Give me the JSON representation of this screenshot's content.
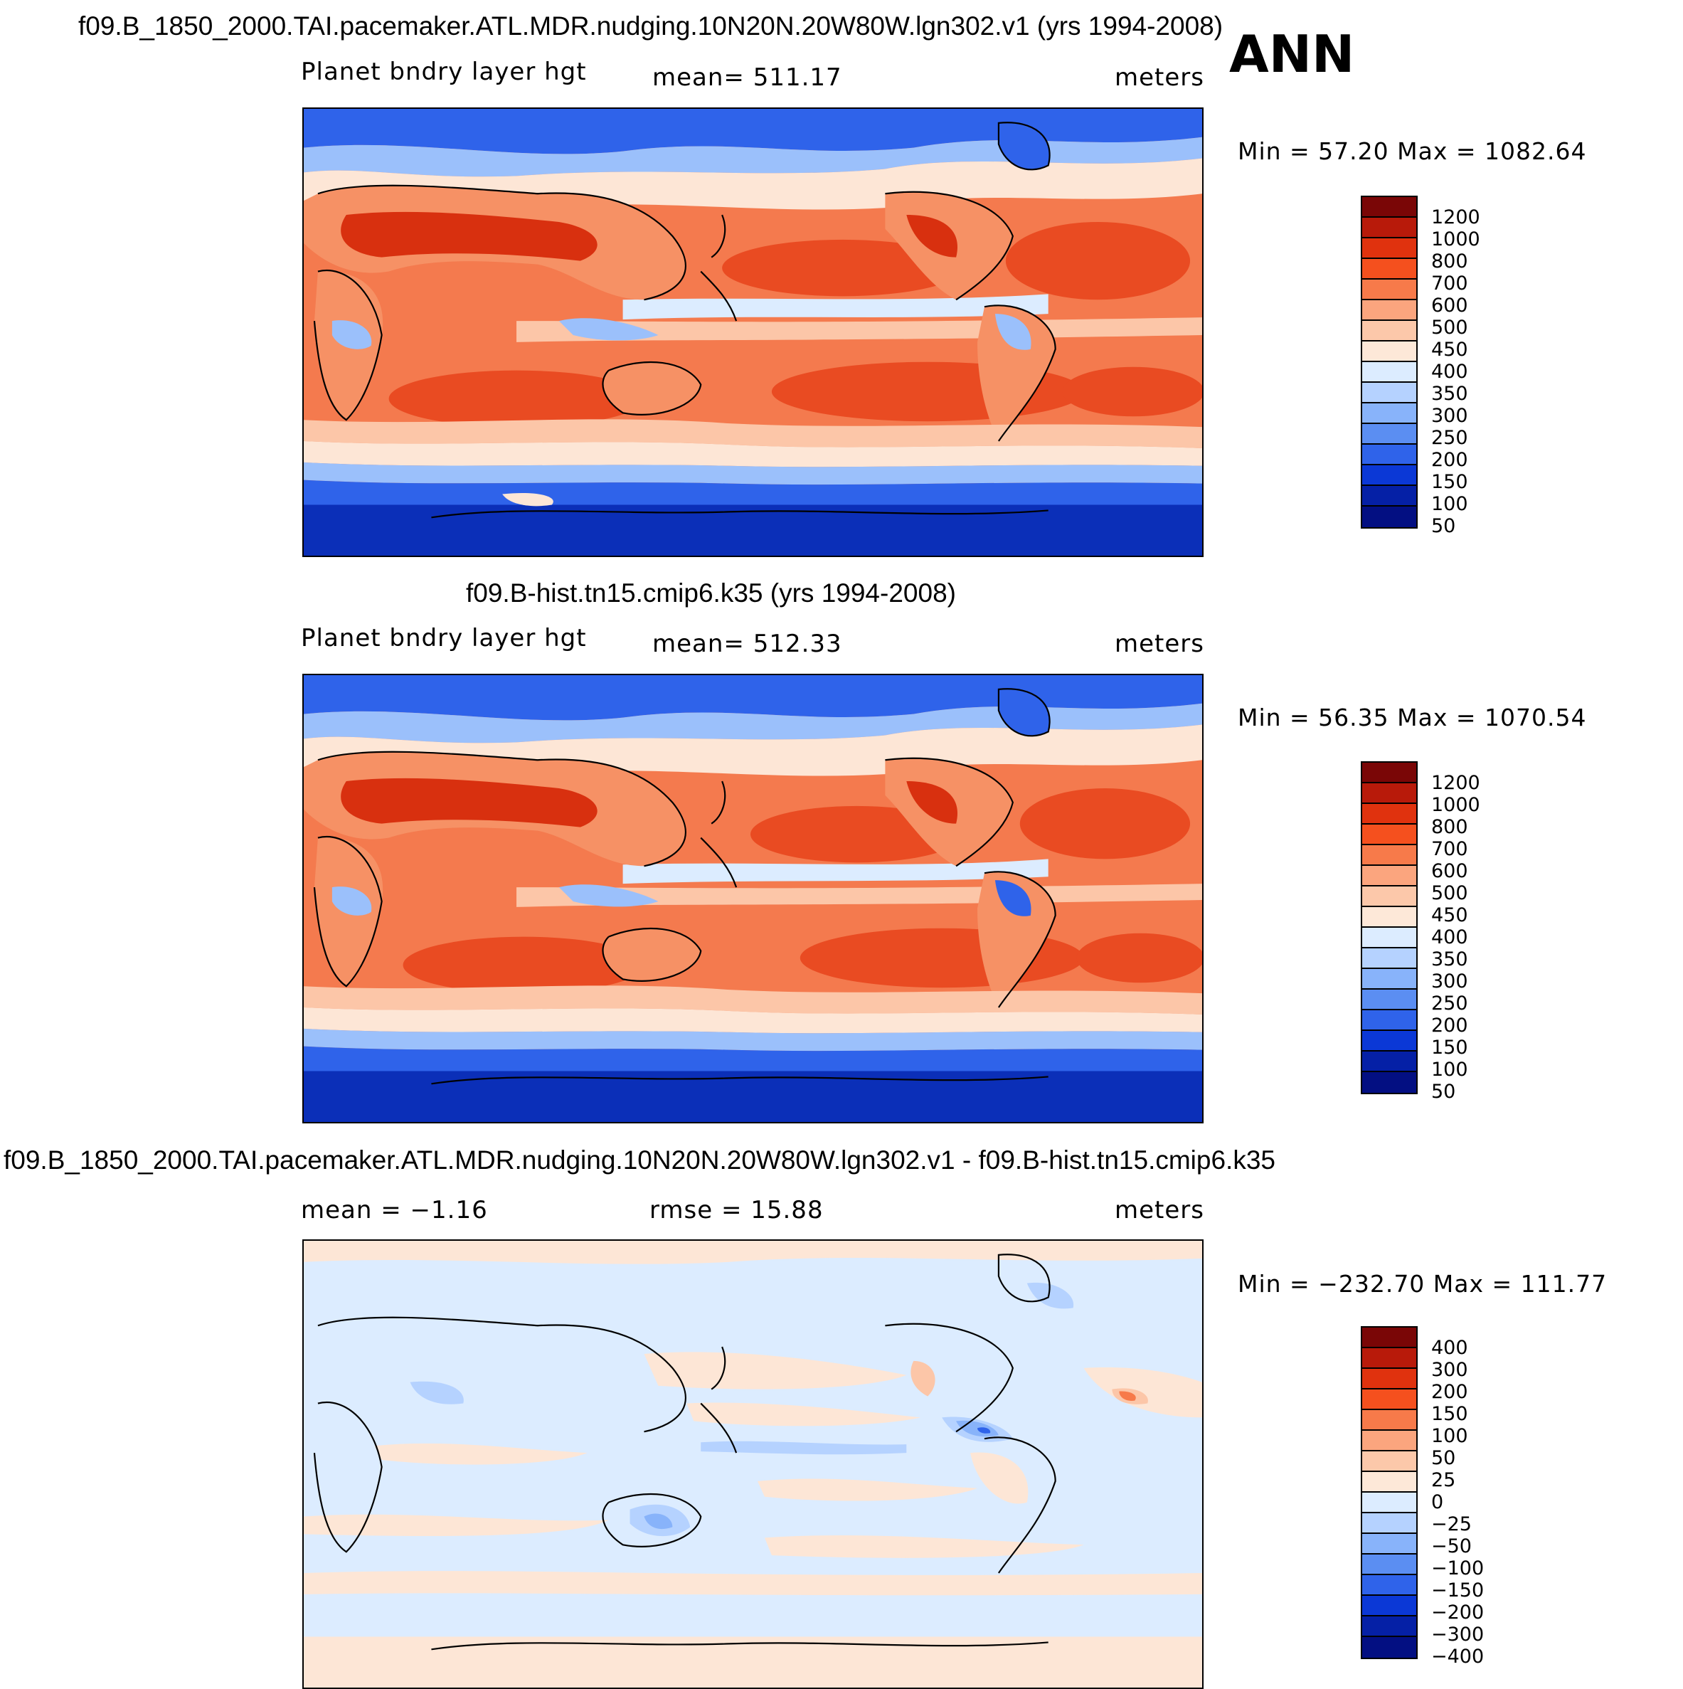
{
  "season": "ANN",
  "panels": [
    {
      "title": "f09.B_1850_2000.TAI.pacemaker.ATL.MDR.nudging.10N20N.20W80W.lgn302.v1 (yrs 1994-2008)",
      "var_label": "Planet bndry layer hgt",
      "mean_text": "mean= 511.17",
      "units": "meters",
      "minmax": "Min =   57.20 Max = 1082.64",
      "colorbar": {
        "labels": [
          "1200",
          "1000",
          "800",
          "700",
          "600",
          "500",
          "450",
          "400",
          "350",
          "300",
          "250",
          "200",
          "150",
          "100",
          "50"
        ],
        "colors": [
          "#7a0606",
          "#b81a0a",
          "#e0320e",
          "#f5501e",
          "#f77a4a",
          "#fba57e",
          "#fcc8aa",
          "#fde8d8",
          "#dcecff",
          "#b5d2ff",
          "#88b3fa",
          "#5b8ef2",
          "#2f63ea",
          "#0b38d6",
          "#0520a6",
          "#030f82"
        ]
      },
      "map_colors": {
        "ocean": "#f47a4e",
        "ocean_hi": "#e94b22",
        "land": "#f69165",
        "land_hi": "#d8300f",
        "sub": "#fcc6a8",
        "pale": "#fde6d6",
        "polar": "#2f63ea",
        "polar_deep": "#0b2fb8",
        "cold": "#9bc0fb",
        "trop": "#dcecff"
      }
    },
    {
      "title": "f09.B-hist.tn15.cmip6.k35 (yrs 1994-2008)",
      "var_label": "Planet bndry layer hgt",
      "mean_text": "mean= 512.33",
      "units": "meters",
      "minmax": "Min =   56.35 Max = 1070.54",
      "colorbar": {
        "labels": [
          "1200",
          "1000",
          "800",
          "700",
          "600",
          "500",
          "450",
          "400",
          "350",
          "300",
          "250",
          "200",
          "150",
          "100",
          "50"
        ],
        "colors": [
          "#7a0606",
          "#b81a0a",
          "#e0320e",
          "#f5501e",
          "#f77a4a",
          "#fba57e",
          "#fcc8aa",
          "#fde8d8",
          "#dcecff",
          "#b5d2ff",
          "#88b3fa",
          "#5b8ef2",
          "#2f63ea",
          "#0b38d6",
          "#0520a6",
          "#030f82"
        ]
      },
      "map_colors": {
        "ocean": "#f47a4e",
        "ocean_hi": "#e94b22",
        "land": "#f69165",
        "land_hi": "#d8300f",
        "sub": "#fcc6a8",
        "pale": "#fde6d6",
        "polar": "#2f63ea",
        "polar_deep": "#0b2fb8",
        "cold": "#9bc0fb",
        "trop": "#dcecff"
      }
    },
    {
      "title": "f09.B_1850_2000.TAI.pacemaker.ATL.MDR.nudging.10N20N.20W80W.lgn302.v1 - f09.B-hist.tn15.cmip6.k35",
      "mean_text": "mean =   −1.16",
      "rmse_text": "rmse =   15.88",
      "units": "meters",
      "minmax": "Min = −232.70 Max = 111.77",
      "colorbar": {
        "labels": [
          "400",
          "300",
          "200",
          "150",
          "100",
          "50",
          "25",
          "0",
          "−25",
          "−50",
          "−100",
          "−150",
          "−200",
          "−300",
          "−400"
        ],
        "colors": [
          "#7a0606",
          "#b81a0a",
          "#e0320e",
          "#f5501e",
          "#f77a4a",
          "#fba57e",
          "#fcc8aa",
          "#fde8d8",
          "#dcecff",
          "#b5d2ff",
          "#88b3fa",
          "#5b8ef2",
          "#2f63ea",
          "#0b38d6",
          "#0520a6",
          "#030f82"
        ]
      },
      "map_colors": {
        "bg": "#dcecff",
        "pos": "#fde6d6",
        "pos2": "#fcc6a8",
        "pos3": "#f77a4a",
        "neg": "#b5d2ff",
        "neg2": "#88b3fa",
        "neg3": "#2f63ea"
      }
    }
  ]
}
